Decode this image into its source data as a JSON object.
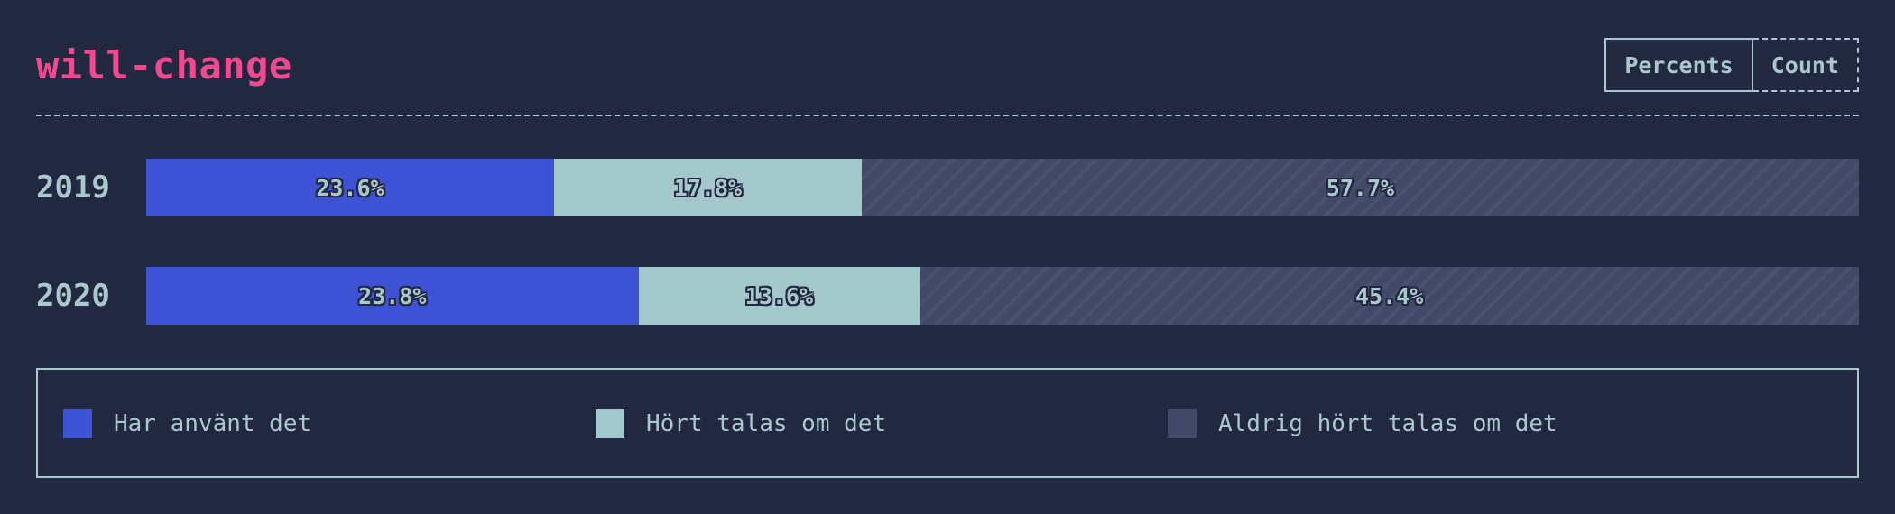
{
  "title": "will-change",
  "toggle": {
    "percents_label": "Percents",
    "count_label": "Count",
    "selected": "Percents"
  },
  "colors": {
    "background": "#232841",
    "title": "#f1498f",
    "text": "#a8c8cc",
    "used": "#3d52d5",
    "heard": "#a2c8cb",
    "never": "#434868"
  },
  "chart_data": {
    "type": "bar",
    "orientation": "horizontal",
    "stacked": true,
    "normalized": true,
    "unit": "%",
    "categories": [
      "2019",
      "2020"
    ],
    "series": [
      {
        "name": "Har använt det",
        "values": [
          23.6,
          23.8
        ],
        "labels": [
          "23.6%",
          "23.8%"
        ],
        "color": "#3d52d5"
      },
      {
        "name": "Hört talas om det",
        "values": [
          17.8,
          13.6
        ],
        "labels": [
          "17.8%",
          "13.6%"
        ],
        "color": "#a2c8cb"
      },
      {
        "name": "Aldrig hört talas om det",
        "values": [
          57.7,
          45.4
        ],
        "labels": [
          "57.7%",
          "45.4%"
        ],
        "color": "#434868"
      }
    ],
    "legend_position": "bottom"
  }
}
